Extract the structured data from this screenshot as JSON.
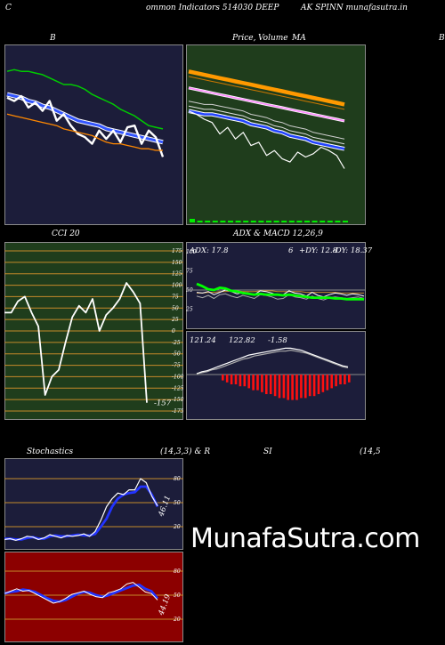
{
  "header": {
    "left_letter": "C",
    "title_left": "ommon  Indicators 514030  DEEP",
    "title_right": "AK SPINN  munafasutra.in"
  },
  "panel_titles": {
    "bb": "B",
    "price": "Price,",
    "price_overlap": "Volume",
    "price_ma": "MA",
    "right_edge": "B",
    "cci": "CCI 20",
    "adx_macd": "ADX  & MACD 12,26,9",
    "stoch_left": "Stochastics",
    "stoch_params": "(14,3,3) & R",
    "rsi": "SI",
    "rsi_params": "(14,5"
  },
  "watermark": "MunafaSutra.com",
  "colors": {
    "navy_panel": "#1c1d3a",
    "green_panel": "#1f3d1c",
    "rsi_panel": "#8c0000",
    "cci_band": "#c58a2a",
    "price_orange": "#ff9900",
    "price_blue": "#2244ff",
    "macd_red": "#ff1010",
    "adx_green": "#00ff00"
  },
  "chart_data": [
    {
      "id": "bollinger",
      "type": "line",
      "title": "B",
      "ylim": [
        0,
        100
      ],
      "series": [
        {
          "color": "#00cc00",
          "values": [
            88,
            89,
            88,
            88,
            87,
            86,
            84,
            82,
            80,
            80,
            79,
            77,
            74,
            72,
            70,
            68,
            65,
            63,
            61,
            58,
            55,
            54,
            53
          ]
        },
        {
          "color": "#3355ff",
          "values": [
            74,
            73,
            72,
            70,
            69,
            67,
            66,
            64,
            62,
            60,
            58,
            57,
            56,
            55,
            53,
            52,
            51,
            50,
            49,
            48,
            47,
            46,
            45
          ]
        },
        {
          "color": "#ffffff",
          "values": [
            72,
            70,
            73,
            66,
            69,
            64,
            70,
            58,
            62,
            55,
            50,
            48,
            44,
            52,
            47,
            52,
            45,
            54,
            55,
            44,
            52,
            48,
            36
          ]
        },
        {
          "color": "#ff8800",
          "values": [
            62,
            61,
            60,
            59,
            58,
            57,
            56,
            55,
            53,
            52,
            51,
            50,
            49,
            47,
            45,
            44,
            44,
            43,
            42,
            41,
            41,
            40,
            40
          ]
        }
      ]
    },
    {
      "id": "price_ma",
      "type": "line",
      "title": "Price, Volume, MA",
      "ylim": [
        0,
        100
      ],
      "series": [
        {
          "color": "#ff9900",
          "values": [
            89,
            88,
            87,
            86,
            85,
            84,
            83,
            82,
            81,
            80,
            79,
            78,
            77,
            76,
            75,
            74,
            73,
            72,
            71,
            70,
            69
          ]
        },
        {
          "color": "#ff88ff",
          "values": [
            79,
            78,
            77,
            76,
            75,
            74,
            73,
            72,
            71,
            70,
            69,
            68,
            67,
            66,
            65,
            64,
            63,
            62,
            61,
            60,
            59
          ]
        },
        {
          "color": "#2244ff",
          "values": [
            65,
            64,
            63,
            63,
            62,
            61,
            60,
            59,
            57,
            56,
            55,
            53,
            52,
            50,
            49,
            48,
            46,
            45,
            44,
            43,
            42
          ]
        },
        {
          "color": "#ffffff",
          "values": [
            65,
            63,
            60,
            58,
            51,
            55,
            48,
            52,
            44,
            46,
            38,
            41,
            36,
            34,
            40,
            37,
            39,
            43,
            41,
            38,
            30
          ]
        }
      ],
      "volume": [
        2,
        1,
        1,
        1,
        1,
        1,
        1,
        1,
        1,
        1,
        1,
        1,
        1,
        1,
        1,
        1,
        1,
        1,
        1,
        1,
        1
      ]
    },
    {
      "id": "cci",
      "type": "line",
      "title": "CCI 20",
      "ylim": [
        -175,
        175
      ],
      "yticks": [
        175,
        150,
        125,
        100,
        75,
        50,
        25,
        0,
        -25,
        -50,
        -75,
        -100,
        -125,
        -150,
        -175
      ],
      "last_label": "-157",
      "series": [
        {
          "color": "#ffffff",
          "values": [
            40,
            40,
            65,
            75,
            40,
            10,
            -140,
            -100,
            -85,
            -25,
            30,
            55,
            40,
            70,
            0,
            35,
            50,
            70,
            105,
            85,
            60,
            -157
          ]
        }
      ]
    },
    {
      "id": "adx",
      "type": "line",
      "title": "ADX & MACD 12,26,9",
      "labels": {
        "adx": "ADX: 17.8",
        "dy_num": "6",
        "plus_dy": "+DY: 12.8",
        "minus_dy": "-DY: 18.37"
      },
      "yticks": [
        100,
        75,
        50,
        25
      ],
      "series": [
        {
          "color": "#00ff00",
          "values": [
            22,
            19,
            15,
            14,
            17,
            16,
            13,
            12,
            10,
            9,
            8,
            9,
            8,
            8,
            8,
            7,
            8,
            7,
            6,
            5,
            4,
            4,
            4,
            4,
            3,
            3,
            2,
            2,
            2,
            2
          ]
        },
        {
          "color": "#ffffff",
          "values": [
            15,
            14,
            16,
            12,
            15,
            18,
            16,
            13,
            15,
            14,
            12,
            17,
            16,
            14,
            11,
            12,
            17,
            14,
            13,
            10,
            15,
            11,
            9,
            12,
            14,
            13,
            11,
            13,
            12,
            10
          ]
        },
        {
          "color": "#aaaaaa",
          "values": [
            12,
            10,
            13,
            9,
            14,
            15,
            12,
            10,
            13,
            11,
            9,
            14,
            13,
            11,
            8,
            9,
            14,
            11,
            10,
            8,
            12,
            9,
            7,
            10,
            11,
            10,
            9,
            10,
            11,
            9
          ]
        },
        {
          "color": "#c58a2a",
          "values": [
            6,
            6,
            7,
            7,
            8,
            8,
            9,
            9,
            8,
            8,
            8,
            9,
            9,
            9,
            8,
            8,
            8,
            8,
            8,
            7,
            7,
            7,
            7,
            7,
            7,
            6,
            6,
            6,
            6,
            6
          ]
        }
      ]
    },
    {
      "id": "macd",
      "type": "bar",
      "labels": {
        "macd": "121.24",
        "signal": "122.82",
        "hist": "-1.58"
      },
      "histogram": [
        -3,
        -4,
        -5,
        -5,
        -6,
        -6,
        -7,
        -8,
        -8,
        -9,
        -10,
        -10,
        -11,
        -12,
        -12,
        -13,
        -13,
        -13,
        -12,
        -12,
        -11,
        -11,
        -10,
        -9,
        -8,
        -7,
        -6,
        -5,
        -5,
        -4
      ],
      "series": [
        {
          "color": "#ffffff",
          "name": "121.24",
          "values": [
            0,
            -2,
            -3,
            -5,
            -7,
            -9,
            -11,
            -13,
            -15,
            -17,
            -19,
            -20,
            -21,
            -22,
            -23,
            -24,
            -25,
            -26,
            -26,
            -25,
            -24,
            -22,
            -20,
            -18,
            -16,
            -14,
            -12,
            -10,
            -8,
            -7
          ]
        },
        {
          "color": "#aaaaaa",
          "name": "122.82",
          "values": [
            0,
            -1,
            -2,
            -4,
            -5,
            -7,
            -9,
            -11,
            -13,
            -15,
            -16,
            -18,
            -19,
            -20,
            -21,
            -22,
            -23,
            -23,
            -24,
            -23,
            -22,
            -21,
            -19,
            -17,
            -15,
            -13,
            -11,
            -9,
            -7,
            -6
          ]
        }
      ]
    },
    {
      "id": "stochastics",
      "type": "line",
      "title": "Stochastics (14,3,3)",
      "ylim": [
        0,
        100
      ],
      "yticks": [
        80,
        50,
        20
      ],
      "last_label": "46.11",
      "series": [
        {
          "color": "#2233ff",
          "values": [
            5,
            5,
            4,
            4,
            6,
            7,
            5,
            5,
            8,
            9,
            8,
            8,
            9,
            10,
            9,
            9,
            11,
            20,
            30,
            45,
            55,
            60,
            62,
            63,
            70,
            70,
            60,
            45
          ]
        },
        {
          "color": "#ffffff",
          "values": [
            4,
            5,
            3,
            5,
            8,
            7,
            4,
            6,
            10,
            8,
            6,
            9,
            8,
            9,
            11,
            8,
            14,
            28,
            45,
            55,
            62,
            60,
            66,
            66,
            80,
            75,
            58,
            46
          ]
        }
      ]
    },
    {
      "id": "rsi",
      "type": "line",
      "title": "RSI (14,5)",
      "ylim": [
        0,
        100
      ],
      "yticks": [
        80,
        50,
        20
      ],
      "last_label": "44.19",
      "series": [
        {
          "color": "#2233ff",
          "values": [
            52,
            54,
            55,
            57,
            56,
            54,
            50,
            46,
            43,
            42,
            44,
            48,
            52,
            54,
            53,
            50,
            48,
            50,
            53,
            56,
            59,
            62,
            63,
            58,
            55,
            46
          ]
        },
        {
          "color": "#ffffff",
          "values": [
            52,
            55,
            58,
            55,
            56,
            52,
            48,
            44,
            40,
            42,
            46,
            51,
            53,
            55,
            51,
            48,
            47,
            53,
            55,
            58,
            64,
            66,
            60,
            54,
            52,
            44
          ]
        }
      ]
    }
  ]
}
